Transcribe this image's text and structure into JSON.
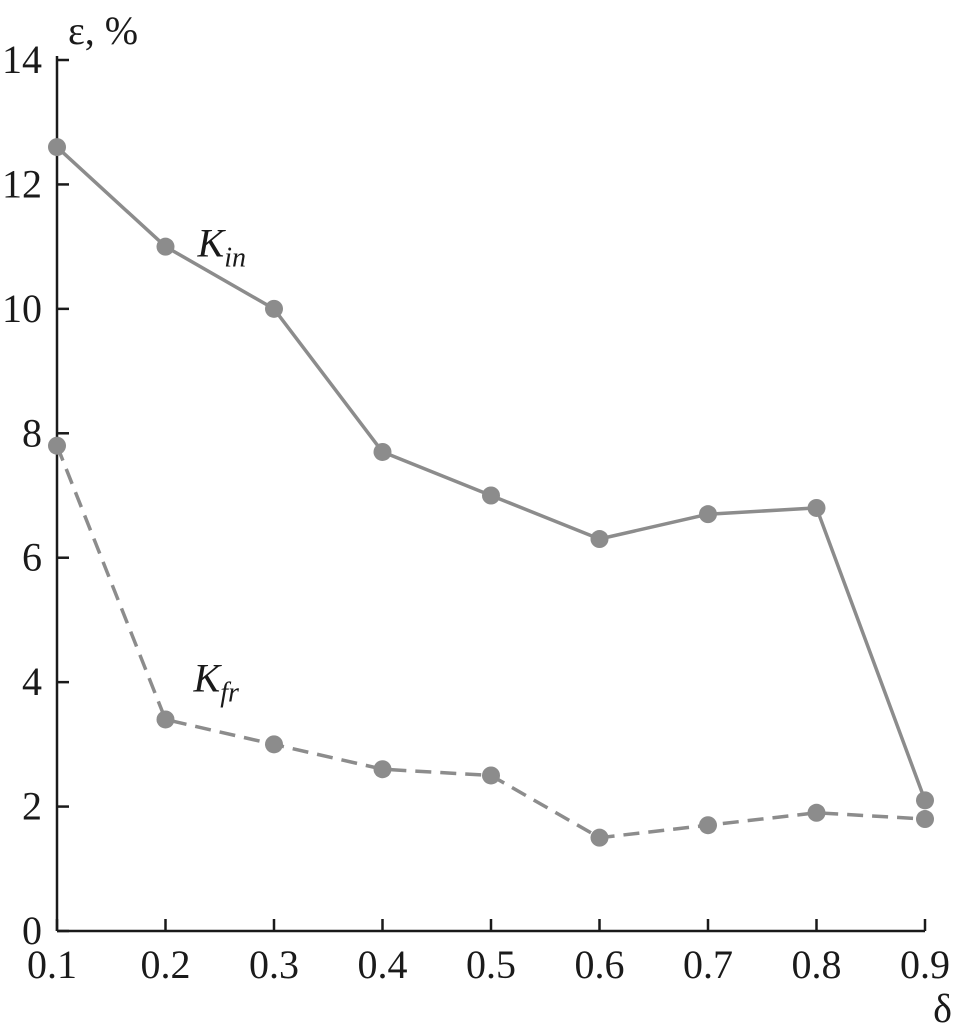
{
  "chart_data": {
    "type": "line",
    "title": "",
    "xlabel": "δ",
    "ylabel": "ε, %",
    "x": [
      0.1,
      0.2,
      0.3,
      0.4,
      0.5,
      0.6,
      0.7,
      0.8,
      0.9
    ],
    "xlim": [
      0.1,
      0.9
    ],
    "ylim": [
      0,
      14
    ],
    "x_ticks": [
      "0.1",
      "0.2",
      "0.3",
      "0.4",
      "0.5",
      "0.6",
      "0.7",
      "0.8",
      "0.9"
    ],
    "y_ticks": [
      "0",
      "2",
      "4",
      "6",
      "8",
      "10",
      "12",
      "14"
    ],
    "grid": false,
    "legend": "inline labels",
    "series": [
      {
        "name": "K",
        "subscript": "in",
        "line_style": "solid",
        "color": "#8c8c8c",
        "values": [
          12.6,
          11.0,
          10.0,
          7.7,
          7.0,
          6.3,
          6.7,
          6.8,
          2.1
        ]
      },
      {
        "name": "K",
        "subscript": "fr",
        "line_style": "dashed",
        "color": "#8c8c8c",
        "values": [
          7.8,
          3.4,
          3.0,
          2.6,
          2.5,
          1.5,
          1.7,
          1.9,
          1.8
        ]
      }
    ]
  }
}
